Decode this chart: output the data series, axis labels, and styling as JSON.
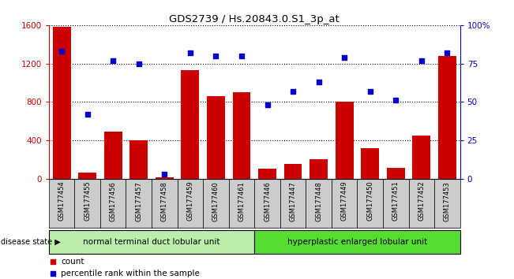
{
  "title": "GDS2739 / Hs.20843.0.S1_3p_at",
  "samples": [
    "GSM177454",
    "GSM177455",
    "GSM177456",
    "GSM177457",
    "GSM177458",
    "GSM177459",
    "GSM177460",
    "GSM177461",
    "GSM177446",
    "GSM177447",
    "GSM177448",
    "GSM177449",
    "GSM177450",
    "GSM177451",
    "GSM177452",
    "GSM177453"
  ],
  "counts": [
    1580,
    60,
    490,
    400,
    15,
    1130,
    860,
    900,
    100,
    155,
    200,
    800,
    320,
    110,
    450,
    1280
  ],
  "percentiles": [
    83,
    42,
    77,
    75,
    3,
    82,
    80,
    80,
    48,
    57,
    63,
    79,
    57,
    51,
    77,
    82
  ],
  "group1_label": "normal terminal duct lobular unit",
  "group1_count": 8,
  "group2_label": "hyperplastic enlarged lobular unit",
  "group2_count": 8,
  "disease_state_label": "disease state",
  "bar_color": "#cc0000",
  "dot_color": "#0000cc",
  "ylim_left": [
    0,
    1600
  ],
  "ylim_right": [
    0,
    100
  ],
  "yticks_left": [
    0,
    400,
    800,
    1200,
    1600
  ],
  "yticks_right": [
    0,
    25,
    50,
    75,
    100
  ],
  "ytick_right_labels": [
    "0",
    "25",
    "50",
    "75",
    "100%"
  ],
  "legend_count_label": "count",
  "legend_pct_label": "percentile rank within the sample",
  "group1_color": "#bbeeaa",
  "group2_color": "#55dd33",
  "xticklabel_bg": "#cccccc"
}
